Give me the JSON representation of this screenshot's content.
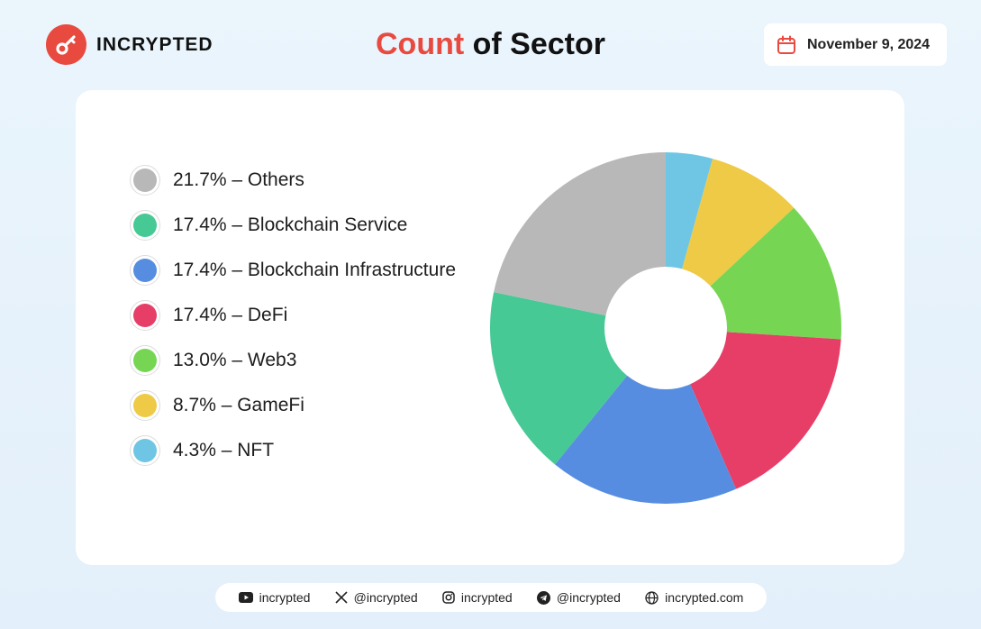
{
  "brand": {
    "name": "INCRYPTED",
    "color": "#e84a3f",
    "logo_icon": "key-icon"
  },
  "header": {
    "title_accent": "Count",
    "title_rest": " of Sector",
    "date": "November 9, 2024",
    "date_icon": "calendar-icon"
  },
  "chart_data": {
    "type": "pie",
    "donut": true,
    "title": "Count of Sector",
    "legend_position": "left",
    "slices": [
      {
        "label": "NFT",
        "percent": 4.3,
        "color": "#6ec6e4"
      },
      {
        "label": "GameFi",
        "percent": 8.7,
        "color": "#efca46"
      },
      {
        "label": "Web3",
        "percent": 13.0,
        "color": "#76d654"
      },
      {
        "label": "DeFi",
        "percent": 17.4,
        "color": "#e63e66"
      },
      {
        "label": "Blockchain Infrastructure",
        "percent": 17.4,
        "color": "#578de0"
      },
      {
        "label": "Blockchain Service",
        "percent": 17.4,
        "color": "#46c994"
      },
      {
        "label": "Others",
        "percent": 21.7,
        "color": "#b8b8b8"
      }
    ],
    "legend": [
      {
        "text": "21.7% – Others",
        "color": "#b8b8b8"
      },
      {
        "text": "17.4% – Blockchain Service",
        "color": "#46c994"
      },
      {
        "text": "17.4% – Blockchain Infrastructure",
        "color": "#578de0"
      },
      {
        "text": "17.4% – DeFi",
        "color": "#e63e66"
      },
      {
        "text": "13.0% – Web3",
        "color": "#76d654"
      },
      {
        "text": "8.7% – GameFi",
        "color": "#efca46"
      },
      {
        "text": "4.3% – NFT",
        "color": "#6ec6e4"
      }
    ]
  },
  "footer": {
    "links": [
      {
        "icon": "youtube-icon",
        "text": "incrypted"
      },
      {
        "icon": "x-icon",
        "text": "@incrypted"
      },
      {
        "icon": "instagram-icon",
        "text": "incrypted"
      },
      {
        "icon": "telegram-icon",
        "text": "@incrypted"
      },
      {
        "icon": "globe-icon",
        "text": "incrypted.com"
      }
    ]
  }
}
